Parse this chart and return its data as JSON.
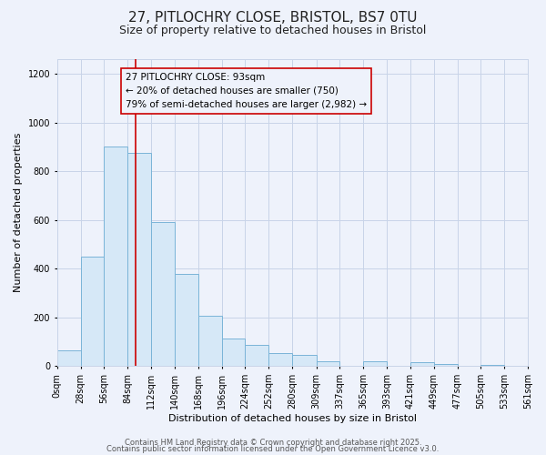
{
  "title1": "27, PITLOCHRY CLOSE, BRISTOL, BS7 0TU",
  "title2": "Size of property relative to detached houses in Bristol",
  "xlabel": "Distribution of detached houses by size in Bristol",
  "ylabel": "Number of detached properties",
  "bin_edges": [
    0,
    28,
    56,
    84,
    112,
    140,
    168,
    196,
    224,
    252,
    280,
    309,
    337,
    365,
    393,
    421,
    449,
    477,
    505,
    533,
    561
  ],
  "bin_labels": [
    "0sqm",
    "28sqm",
    "56sqm",
    "84sqm",
    "112sqm",
    "140sqm",
    "168sqm",
    "196sqm",
    "224sqm",
    "252sqm",
    "280sqm",
    "309sqm",
    "337sqm",
    "365sqm",
    "393sqm",
    "421sqm",
    "449sqm",
    "477sqm",
    "505sqm",
    "533sqm",
    "561sqm"
  ],
  "counts": [
    65,
    450,
    900,
    875,
    590,
    380,
    205,
    113,
    88,
    55,
    45,
    18,
    0,
    18,
    0,
    15,
    8,
    0,
    5,
    0
  ],
  "bar_facecolor": "#d6e8f7",
  "bar_edgecolor": "#7ab4d8",
  "vline_x": 93,
  "vline_color": "#cc0000",
  "annotation_line1": "27 PITLOCHRY CLOSE: 93sqm",
  "annotation_line2": "← 20% of detached houses are smaller (750)",
  "annotation_line3": "79% of semi-detached houses are larger (2,982) →",
  "box_edgecolor": "#cc0000",
  "ylim_max": 1260,
  "yticks": [
    0,
    200,
    400,
    600,
    800,
    1000,
    1200
  ],
  "grid_color": "#c8d4e8",
  "background_color": "#eef2fb",
  "footer_text1": "Contains HM Land Registry data © Crown copyright and database right 2025.",
  "footer_text2": "Contains public sector information licensed under the Open Government Licence v3.0.",
  "title1_fontsize": 11,
  "title2_fontsize": 9,
  "xlabel_fontsize": 8,
  "ylabel_fontsize": 8,
  "tick_fontsize": 7,
  "annotation_fontsize": 7.5,
  "footer_fontsize": 6
}
